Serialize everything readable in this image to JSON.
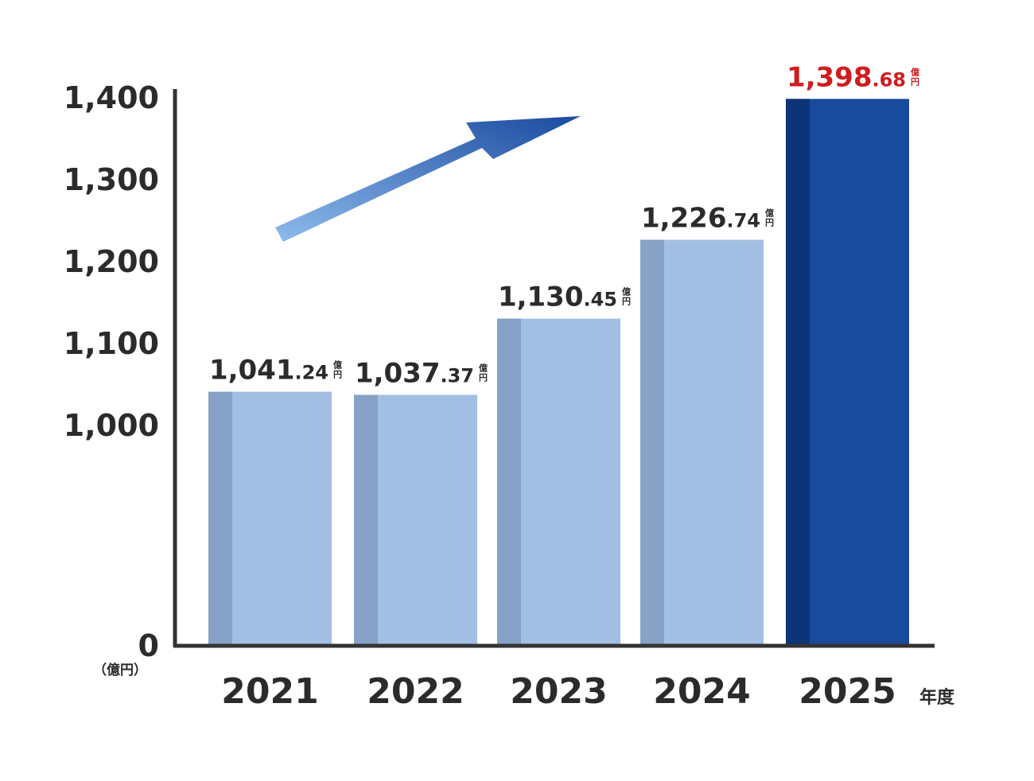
{
  "chart_data": {
    "type": "bar",
    "categories": [
      "2021",
      "2022",
      "2023",
      "2024",
      "2025"
    ],
    "values": [
      1041.24,
      1037.37,
      1130.45,
      1226.74,
      1398.68
    ],
    "value_labels": [
      {
        "main": "1,041",
        "decimal": ".24"
      },
      {
        "main": "1,037",
        "decimal": ".37"
      },
      {
        "main": "1,130",
        "decimal": ".45"
      },
      {
        "main": "1,226",
        "decimal": ".74"
      },
      {
        "main": "1,398",
        "decimal": ".68"
      }
    ],
    "value_unit_top": "億",
    "value_unit_bottom": "円",
    "y_ticks": [
      {
        "value": 0,
        "label": "0"
      },
      {
        "value": 1000,
        "label": "1,000"
      },
      {
        "value": 1100,
        "label": "1,100"
      },
      {
        "value": 1200,
        "label": "1,200"
      },
      {
        "value": 1300,
        "label": "1,300"
      },
      {
        "value": 1400,
        "label": "1,400"
      }
    ],
    "y_axis_break": true,
    "y_unit_label": "（億円）",
    "x_unit_label": "年度",
    "highlight_index": 4,
    "colors": {
      "bar": "#a2bfe3",
      "bar_shade": "#86a2c7",
      "highlight_bar": "#1a4a9c",
      "highlight_shade": "#0e3478",
      "highlight_label": "#d01c1f",
      "text": "#2b2b2b",
      "axis": "#333333",
      "arrow_start": "#8dbbec",
      "arrow_end": "#1b4aa0"
    },
    "grid": false,
    "legend": "none",
    "trend_arrow": true
  }
}
